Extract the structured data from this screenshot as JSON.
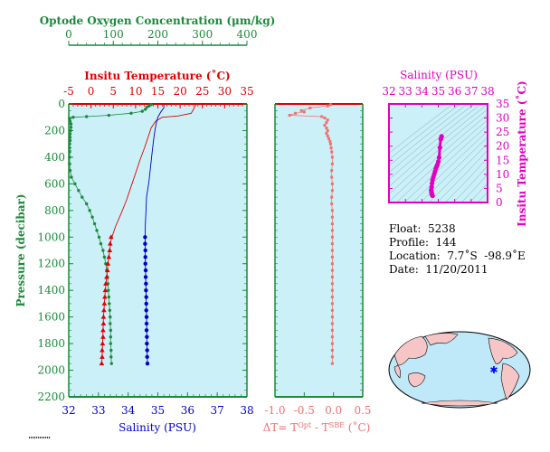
{
  "colors": {
    "oxygen": "#1a8a3a",
    "temperature": "#e00000",
    "salinity": "#0000c0",
    "delta": "#f07070",
    "ts": "#e000c0",
    "panel_bg": "#ccf0f8"
  },
  "chart_data": [
    {
      "type": "line",
      "name": "profile",
      "ylabel": "Pressure (decibar)",
      "ylim": [
        2200,
        0
      ],
      "yticks": [
        "0",
        "200",
        "400",
        "600",
        "800",
        "1000",
        "1200",
        "1400",
        "1600",
        "1800",
        "2000",
        "2200"
      ],
      "axes": {
        "oxygen": {
          "title": "Optode Oxygen Concentration (μm/kg)",
          "xlim": [
            0,
            400
          ],
          "ticks": [
            "0",
            "100",
            "200",
            "300",
            "400"
          ]
        },
        "temperature": {
          "title": "Insitu Temperature (˚C)",
          "xlim": [
            -5,
            35
          ],
          "ticks": [
            "-5",
            "0",
            "5",
            "10",
            "15",
            "20",
            "25",
            "30",
            "35"
          ]
        },
        "salinity": {
          "title": "Salinity (PSU)",
          "xlim": [
            32,
            38
          ],
          "ticks": [
            "32",
            "33",
            "34",
            "35",
            "36",
            "37",
            "38"
          ]
        }
      },
      "series": [
        {
          "key": "oxygen",
          "points": [
            [
              185,
              5
            ],
            [
              180,
              15
            ],
            [
              175,
              25
            ],
            [
              172,
              40
            ],
            [
              165,
              55
            ],
            [
              140,
              70
            ],
            [
              90,
              85
            ],
            [
              40,
              95
            ],
            [
              10,
              100
            ],
            [
              2,
              110
            ],
            [
              3,
              130
            ],
            [
              5,
              150
            ],
            [
              5,
              175
            ],
            [
              4,
              200
            ],
            [
              3,
              225
            ],
            [
              3,
              250
            ],
            [
              3,
              275
            ],
            [
              2,
              300
            ],
            [
              2,
              330
            ],
            [
              2,
              360
            ],
            [
              2,
              400
            ],
            [
              2,
              450
            ],
            [
              3,
              500
            ],
            [
              6,
              550
            ],
            [
              14,
              600
            ],
            [
              22,
              650
            ],
            [
              30,
              700
            ],
            [
              40,
              750
            ],
            [
              47,
              800
            ],
            [
              53,
              850
            ],
            [
              58,
              900
            ],
            [
              63,
              950
            ],
            [
              68,
              1000
            ],
            [
              72,
              1050
            ],
            [
              77,
              1100
            ],
            [
              80,
              1150
            ],
            [
              83,
              1200
            ],
            [
              85,
              1250
            ],
            [
              87,
              1300
            ],
            [
              88,
              1350
            ],
            [
              89,
              1400
            ],
            [
              90,
              1450
            ],
            [
              91,
              1500
            ],
            [
              92,
              1550
            ],
            [
              93,
              1600
            ],
            [
              93,
              1650
            ],
            [
              94,
              1700
            ],
            [
              94,
              1750
            ],
            [
              94,
              1800
            ],
            [
              95,
              1850
            ],
            [
              95,
              1900
            ],
            [
              96,
              1950
            ]
          ]
        },
        {
          "key": "temperature",
          "line": [
            [
              23.5,
              5
            ],
            [
              23.3,
              20
            ],
            [
              23,
              40
            ],
            [
              22.5,
              70
            ],
            [
              19.5,
              90
            ],
            [
              16,
              100
            ],
            [
              14.5,
              130
            ],
            [
              13.5,
              180
            ],
            [
              12.8,
              250
            ],
            [
              12,
              330
            ],
            [
              11,
              420
            ],
            [
              10,
              520
            ],
            [
              9,
              620
            ],
            [
              8,
              720
            ],
            [
              6.8,
              820
            ],
            [
              5.5,
              920
            ],
            [
              4.5,
              1020
            ],
            [
              4.2,
              1100
            ],
            [
              3.8,
              1200
            ],
            [
              3.5,
              1300
            ],
            [
              3.2,
              1400
            ],
            [
              3,
              1500
            ],
            [
              2.8,
              1600
            ],
            [
              2.7,
              1700
            ],
            [
              2.6,
              1800
            ],
            [
              2.5,
              1900
            ],
            [
              2.4,
              1950
            ]
          ],
          "markers": [
            [
              4.5,
              1000
            ],
            [
              4.3,
              1050
            ],
            [
              4.2,
              1100
            ],
            [
              4,
              1150
            ],
            [
              3.8,
              1200
            ],
            [
              3.7,
              1250
            ],
            [
              3.5,
              1300
            ],
            [
              3.3,
              1350
            ],
            [
              3.2,
              1400
            ],
            [
              3.1,
              1450
            ],
            [
              3,
              1500
            ],
            [
              2.9,
              1550
            ],
            [
              2.8,
              1600
            ],
            [
              2.8,
              1650
            ],
            [
              2.7,
              1700
            ],
            [
              2.7,
              1750
            ],
            [
              2.6,
              1800
            ],
            [
              2.5,
              1850
            ],
            [
              2.5,
              1900
            ],
            [
              2.4,
              1950
            ]
          ]
        },
        {
          "key": "salinity",
          "line": [
            [
              35.2,
              5
            ],
            [
              35.2,
              30
            ],
            [
              35.1,
              60
            ],
            [
              35.0,
              100
            ],
            [
              34.95,
              140
            ],
            [
              34.9,
              200
            ],
            [
              34.85,
              280
            ],
            [
              34.8,
              380
            ],
            [
              34.75,
              480
            ],
            [
              34.7,
              580
            ],
            [
              34.62,
              700
            ],
            [
              34.6,
              800
            ],
            [
              34.58,
              900
            ],
            [
              34.57,
              1000
            ],
            [
              34.58,
              1200
            ],
            [
              34.6,
              1400
            ],
            [
              34.62,
              1600
            ],
            [
              34.63,
              1800
            ],
            [
              34.65,
              1950
            ]
          ],
          "markers": [
            [
              34.57,
              1000
            ],
            [
              34.57,
              1050
            ],
            [
              34.58,
              1100
            ],
            [
              34.58,
              1150
            ],
            [
              34.58,
              1200
            ],
            [
              34.59,
              1250
            ],
            [
              34.59,
              1300
            ],
            [
              34.6,
              1350
            ],
            [
              34.6,
              1400
            ],
            [
              34.61,
              1450
            ],
            [
              34.61,
              1500
            ],
            [
              34.61,
              1550
            ],
            [
              34.62,
              1600
            ],
            [
              34.62,
              1650
            ],
            [
              34.62,
              1700
            ],
            [
              34.63,
              1750
            ],
            [
              34.63,
              1800
            ],
            [
              34.64,
              1850
            ],
            [
              34.64,
              1900
            ],
            [
              34.65,
              1950
            ]
          ]
        }
      ]
    },
    {
      "type": "scatter",
      "name": "delta_t",
      "xlabel": "ΔT= T",
      "xlabel_sup1": "Opt",
      "xlabel_mid": " - T",
      "xlabel_sup2": "SBE",
      "xlabel_end": " (˚C)",
      "xlim": [
        -1.0,
        0.5
      ],
      "xticks": [
        "-1.0",
        "-0.5",
        "0.0",
        "0.5"
      ],
      "ylim": [
        2200,
        0
      ],
      "points": [
        [
          -0.05,
          5
        ],
        [
          -0.1,
          15
        ],
        [
          -0.4,
          30
        ],
        [
          -0.55,
          50
        ],
        [
          -0.5,
          60
        ],
        [
          -0.65,
          70
        ],
        [
          -0.75,
          85
        ],
        [
          -0.2,
          95
        ],
        [
          -0.15,
          105
        ],
        [
          -0.1,
          120
        ],
        [
          -0.12,
          140
        ],
        [
          -0.15,
          160
        ],
        [
          -0.12,
          180
        ],
        [
          -0.1,
          200
        ],
        [
          -0.12,
          220
        ],
        [
          -0.1,
          240
        ],
        [
          -0.08,
          260
        ],
        [
          -0.06,
          280
        ],
        [
          -0.05,
          300
        ],
        [
          -0.04,
          330
        ],
        [
          -0.03,
          360
        ],
        [
          -0.02,
          400
        ],
        [
          -0.02,
          450
        ],
        [
          -0.03,
          500
        ],
        [
          -0.03,
          550
        ],
        [
          -0.02,
          600
        ],
        [
          -0.02,
          650
        ],
        [
          -0.03,
          700
        ],
        [
          -0.03,
          750
        ],
        [
          -0.02,
          800
        ],
        [
          -0.02,
          850
        ],
        [
          -0.02,
          900
        ],
        [
          -0.02,
          950
        ],
        [
          -0.02,
          1000
        ],
        [
          -0.02,
          1050
        ],
        [
          -0.02,
          1100
        ],
        [
          -0.02,
          1150
        ],
        [
          -0.02,
          1200
        ],
        [
          -0.02,
          1250
        ],
        [
          -0.02,
          1300
        ],
        [
          -0.02,
          1350
        ],
        [
          -0.02,
          1400
        ],
        [
          -0.02,
          1450
        ],
        [
          -0.02,
          1500
        ],
        [
          -0.02,
          1550
        ],
        [
          -0.02,
          1600
        ],
        [
          -0.02,
          1650
        ],
        [
          -0.02,
          1700
        ],
        [
          -0.02,
          1750
        ],
        [
          -0.02,
          1800
        ],
        [
          -0.02,
          1850
        ],
        [
          -0.02,
          1900
        ],
        [
          -0.02,
          1950
        ]
      ]
    },
    {
      "type": "scatter",
      "name": "ts_diagram",
      "title": "Salinity (PSU)",
      "xlim": [
        32,
        38
      ],
      "xticks": [
        "32",
        "33",
        "34",
        "35",
        "36",
        "37",
        "38"
      ],
      "ylabel": "Insitu Temperature (˚C)",
      "ylim": [
        0,
        35
      ],
      "yticks": [
        "0",
        "5",
        "10",
        "15",
        "20",
        "25",
        "30",
        "35"
      ],
      "points": [
        [
          34.57,
          4.5
        ],
        [
          34.58,
          4
        ],
        [
          34.59,
          3.6
        ],
        [
          34.6,
          3.2
        ],
        [
          34.61,
          3
        ],
        [
          34.62,
          2.8
        ],
        [
          34.63,
          2.6
        ],
        [
          34.65,
          2.4
        ],
        [
          34.6,
          5.5
        ],
        [
          34.62,
          6.8
        ],
        [
          34.65,
          8
        ],
        [
          34.7,
          9
        ],
        [
          34.75,
          10
        ],
        [
          34.8,
          11
        ],
        [
          34.85,
          12
        ],
        [
          34.9,
          12.8
        ],
        [
          34.95,
          13.5
        ],
        [
          35.0,
          14.5
        ],
        [
          35.05,
          16
        ],
        [
          35.1,
          19.5
        ],
        [
          35.15,
          22.5
        ],
        [
          35.2,
          23.3
        ],
        [
          35.2,
          23.5
        ]
      ]
    }
  ],
  "float_info": {
    "float": "Float:  5238",
    "profile": "Profile:  144",
    "location": "Location:  7.7˚S  -98.9˚E",
    "date": "Date:  11/20/2011"
  },
  "map": {
    "marker_label": "float position"
  }
}
